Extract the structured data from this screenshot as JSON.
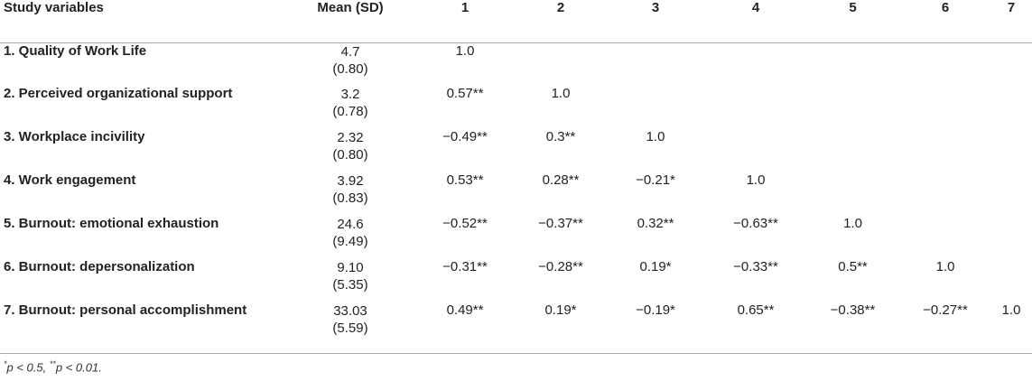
{
  "table": {
    "headers": [
      "Study variables",
      "Mean (SD)",
      "1",
      "2",
      "3",
      "4",
      "5",
      "6",
      "7"
    ],
    "rows": [
      {
        "variable": "1. Quality of Work Life",
        "mean": "4.7",
        "sd": "(0.80)",
        "values": [
          "1.0",
          "",
          "",
          "",
          "",
          "",
          ""
        ]
      },
      {
        "variable": "2. Perceived organizational support",
        "mean": "3.2",
        "sd": "(0.78)",
        "values": [
          "0.57**",
          "1.0",
          "",
          "",
          "",
          "",
          ""
        ]
      },
      {
        "variable": "3. Workplace incivility",
        "mean": "2.32",
        "sd": "(0.80)",
        "values": [
          "−0.49**",
          "0.3**",
          "1.0",
          "",
          "",
          "",
          ""
        ]
      },
      {
        "variable": "4. Work engagement",
        "mean": "3.92",
        "sd": "(0.83)",
        "values": [
          "0.53**",
          "0.28**",
          "−0.21*",
          "1.0",
          "",
          "",
          ""
        ]
      },
      {
        "variable": "5. Burnout: emotional exhaustion",
        "mean": "24.6",
        "sd": "(9.49)",
        "values": [
          "−0.52**",
          "−0.37**",
          "0.32**",
          "−0.63**",
          "1.0",
          "",
          ""
        ]
      },
      {
        "variable": "6. Burnout: depersonalization",
        "mean": "9.10",
        "sd": "(5.35)",
        "values": [
          "−0.31**",
          "−0.28**",
          "0.19*",
          "−0.33**",
          "0.5**",
          "1.0",
          ""
        ]
      },
      {
        "variable": "7. Burnout: personal accomplishment",
        "mean": "33.03",
        "sd": "(5.59)",
        "values": [
          "0.49**",
          "0.19*",
          "−0.19*",
          "0.65**",
          "−0.38**",
          "−0.27**",
          "1.0"
        ]
      }
    ]
  },
  "note": {
    "star1": "*",
    "text1": "p < 0.5, ",
    "star2": "**",
    "text2": "p < 0.01."
  }
}
